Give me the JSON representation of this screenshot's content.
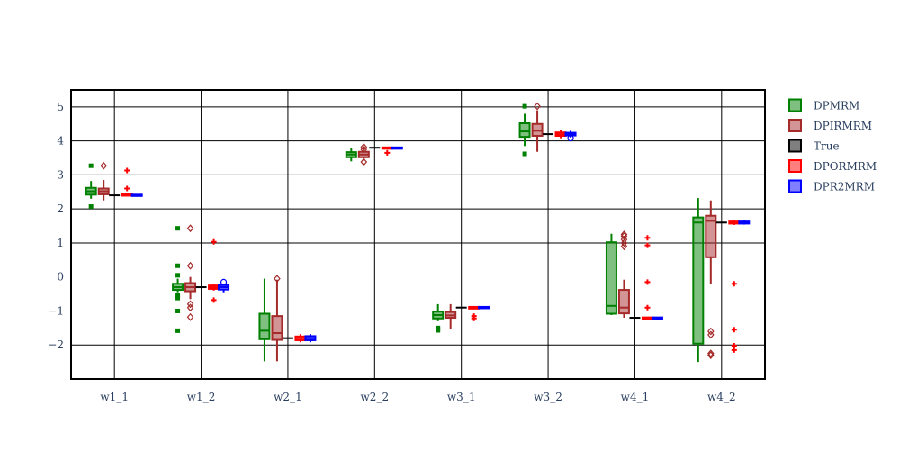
{
  "chart_data": {
    "type": "box",
    "categories": [
      "w1_1",
      "w1_2",
      "w2_1",
      "w2_2",
      "w3_1",
      "w3_2",
      "w4_1",
      "w4_2"
    ],
    "ylim": [
      -3.0,
      5.5
    ],
    "yticks": [
      -2,
      -1,
      0,
      1,
      2,
      3,
      4,
      5
    ],
    "grid": true,
    "legend_position": "right",
    "series": [
      {
        "name": "DPMRM",
        "color": "#008000",
        "kind": "box",
        "marker": "square",
        "boxes": [
          {
            "q1": 2.42,
            "median": 2.52,
            "q3": 2.62,
            "low": 2.3,
            "high": 2.82,
            "outliers": [
              3.27,
              2.07
            ]
          },
          {
            "q1": -0.38,
            "median": -0.3,
            "q3": -0.2,
            "low": -0.45,
            "high": -0.05,
            "outliers": [
              1.43,
              0.33,
              0.05,
              -0.55,
              -0.62,
              -1.0,
              -1.58
            ]
          },
          {
            "q1": -1.83,
            "median": -1.58,
            "q3": -1.08,
            "low": -2.48,
            "high": -0.05,
            "outliers": []
          },
          {
            "q1": 3.52,
            "median": 3.6,
            "q3": 3.67,
            "low": 3.4,
            "high": 3.8,
            "outliers": []
          },
          {
            "q1": -1.22,
            "median": -1.12,
            "q3": -1.02,
            "low": -1.3,
            "high": -0.8,
            "outliers": [
              -1.5,
              -1.57
            ]
          },
          {
            "q1": 4.12,
            "median": 4.28,
            "q3": 4.52,
            "low": 3.85,
            "high": 4.8,
            "outliers": [
              5.02,
              3.62
            ]
          },
          {
            "q1": -1.08,
            "median": -0.85,
            "q3": 1.02,
            "low": -1.12,
            "high": 1.27,
            "outliers": []
          },
          {
            "q1": -1.96,
            "median": 1.6,
            "q3": 1.75,
            "low": -2.5,
            "high": 2.32,
            "outliers": []
          }
        ]
      },
      {
        "name": "DPIRMRM",
        "color": "#a52a2a",
        "kind": "box",
        "marker": "diamond",
        "boxes": [
          {
            "q1": 2.43,
            "median": 2.52,
            "q3": 2.6,
            "low": 2.25,
            "high": 2.85,
            "outliers": [
              3.27
            ]
          },
          {
            "q1": -0.42,
            "median": -0.3,
            "q3": -0.18,
            "low": -0.65,
            "high": 0.0,
            "outliers": [
              1.43,
              0.33,
              -0.8,
              -0.9,
              -1.18
            ]
          },
          {
            "q1": -1.85,
            "median": -1.65,
            "q3": -1.15,
            "low": -2.48,
            "high": -0.08,
            "outliers": [
              -0.05
            ]
          },
          {
            "q1": 3.52,
            "median": 3.6,
            "q3": 3.68,
            "low": 3.45,
            "high": 3.8,
            "outliers": [
              3.38,
              3.75,
              3.82
            ]
          },
          {
            "q1": -1.2,
            "median": -1.13,
            "q3": -1.03,
            "low": -1.52,
            "high": -0.8,
            "outliers": []
          },
          {
            "q1": 4.15,
            "median": 4.3,
            "q3": 4.5,
            "low": 3.68,
            "high": 4.9,
            "outliers": [
              5.02
            ]
          },
          {
            "q1": -1.07,
            "median": -0.9,
            "q3": -0.38,
            "low": -1.2,
            "high": -0.08,
            "outliers": [
              0.9,
              1.0,
              1.1,
              1.2,
              1.25
            ]
          },
          {
            "q1": 0.58,
            "median": 1.65,
            "q3": 1.8,
            "low": -0.2,
            "high": 2.25,
            "outliers": [
              -1.6,
              -1.7,
              -2.25,
              -2.3
            ]
          }
        ]
      },
      {
        "name": "True",
        "color": "#000000",
        "kind": "line",
        "values": [
          2.4,
          -0.3,
          -1.8,
          3.8,
          -0.9,
          4.2,
          -1.2,
          1.6
        ]
      },
      {
        "name": "DPORMRM",
        "color": "#ff0000",
        "kind": "box",
        "marker": "cross",
        "boxes": [
          {
            "q1": 2.39,
            "median": 2.41,
            "q3": 2.43,
            "low": 2.38,
            "high": 2.45,
            "outliers": [
              3.13,
              2.6
            ]
          },
          {
            "q1": -0.35,
            "median": -0.3,
            "q3": -0.25,
            "low": -0.4,
            "high": -0.2,
            "outliers": [
              1.03,
              -0.68
            ]
          },
          {
            "q1": -1.86,
            "median": -1.8,
            "q3": -1.75,
            "low": -1.92,
            "high": -1.68,
            "outliers": []
          },
          {
            "q1": 3.78,
            "median": 3.8,
            "q3": 3.81,
            "low": 3.76,
            "high": 3.82,
            "outliers": [
              3.65
            ]
          },
          {
            "q1": -0.93,
            "median": -0.9,
            "q3": -0.88,
            "low": -0.95,
            "high": -0.86,
            "outliers": [
              -1.15,
              -1.22
            ]
          },
          {
            "q1": 4.15,
            "median": 4.2,
            "q3": 4.25,
            "low": 4.08,
            "high": 4.32,
            "outliers": []
          },
          {
            "q1": -1.21,
            "median": -1.2,
            "q3": -1.19,
            "low": -1.22,
            "high": -1.18,
            "outliers": [
              1.15,
              0.93,
              -0.15,
              -0.9
            ]
          },
          {
            "q1": 1.57,
            "median": 1.6,
            "q3": 1.63,
            "low": 1.53,
            "high": 1.67,
            "outliers": [
              -0.2,
              -1.55,
              -2.02,
              -2.15
            ]
          }
        ]
      },
      {
        "name": "DPR2MRM",
        "color": "#0000ff",
        "kind": "box",
        "marker": "circle",
        "boxes": [
          {
            "q1": 2.39,
            "median": 2.4,
            "q3": 2.42,
            "low": 2.37,
            "high": 2.44,
            "outliers": []
          },
          {
            "q1": -0.37,
            "median": -0.3,
            "q3": -0.24,
            "low": -0.45,
            "high": -0.2,
            "outliers": [
              -0.15
            ]
          },
          {
            "q1": -1.86,
            "median": -1.8,
            "q3": -1.74,
            "low": -1.92,
            "high": -1.68,
            "outliers": []
          },
          {
            "q1": 3.79,
            "median": 3.8,
            "q3": 3.81,
            "low": 3.78,
            "high": 3.82,
            "outliers": []
          },
          {
            "q1": -0.92,
            "median": -0.9,
            "q3": -0.88,
            "low": -0.94,
            "high": -0.86,
            "outliers": []
          },
          {
            "q1": 4.16,
            "median": 4.2,
            "q3": 4.24,
            "low": 4.1,
            "high": 4.3,
            "outliers": [
              4.08
            ]
          },
          {
            "q1": -1.21,
            "median": -1.2,
            "q3": -1.19,
            "low": -1.22,
            "high": -1.18,
            "outliers": []
          },
          {
            "q1": 1.57,
            "median": 1.6,
            "q3": 1.63,
            "low": 1.54,
            "high": 1.66,
            "outliers": []
          }
        ]
      }
    ]
  }
}
